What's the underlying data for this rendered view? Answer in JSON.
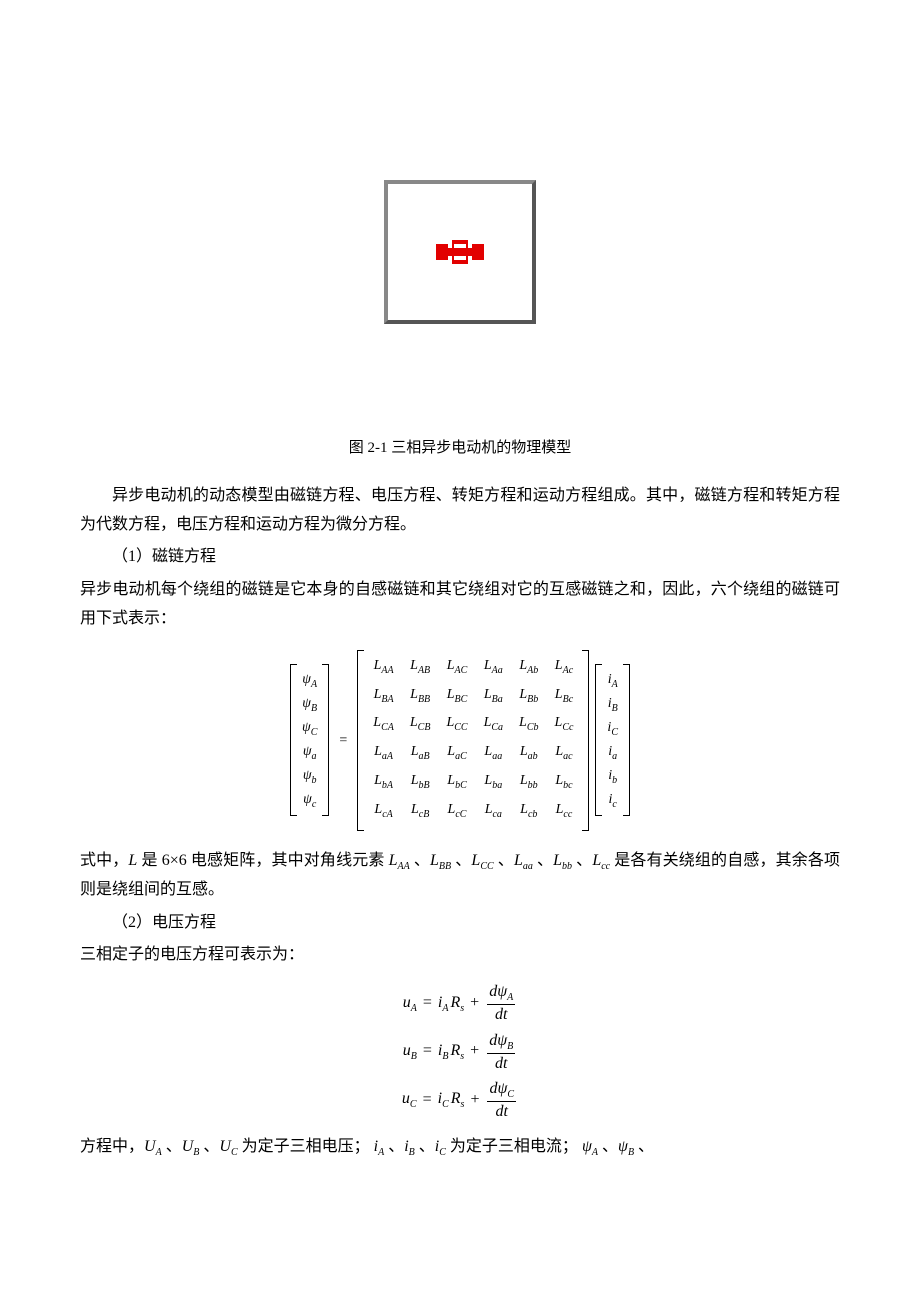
{
  "figure": {
    "caption": "图 2-1 三相异步电动机的物理模型"
  },
  "p1": "异步电动机的动态模型由磁链方程、电压方程、转矩方程和运动方程组成。其中，磁链方程和转矩方程为代数方程，电压方程和运动方程为微分方程。",
  "p2": "（1）磁链方程",
  "p3": "异步电动机每个绕组的磁链是它本身的自感磁链和其它绕组对它的互感磁链之和，因此，六个绕组的磁链可用下式表示：",
  "matrix": {
    "psi": [
      "ψ",
      "ψ",
      "ψ",
      "ψ",
      "ψ",
      "ψ"
    ],
    "psi_sub": [
      "A",
      "B",
      "C",
      "a",
      "b",
      "c"
    ],
    "L_rows": [
      "A",
      "B",
      "C",
      "a",
      "b",
      "c"
    ],
    "L_cols": [
      "A",
      "B",
      "C",
      "a",
      "b",
      "c"
    ],
    "i_sub": [
      "A",
      "B",
      "C",
      "a",
      "b",
      "c"
    ]
  },
  "p4_a": "式中，",
  "p4_L": "L",
  "p4_b": " 是 6×6 电感矩阵，其中对角线元素 ",
  "p4_c": " 是各有关绕组的自感，其余各项则是绕组间的互感。",
  "diag_subs": [
    "AA",
    "BB",
    "CC",
    "aa",
    "bb",
    "cc"
  ],
  "p5": "（2）电压方程",
  "p6": "三相定子的电压方程可表示为：",
  "voltage": {
    "rows": [
      {
        "u_sub": "A",
        "i_sub": "A",
        "psi_sub": "A"
      },
      {
        "u_sub": "B",
        "i_sub": "B",
        "psi_sub": "B"
      },
      {
        "u_sub": "C",
        "i_sub": "C",
        "psi_sub": "C"
      }
    ]
  },
  "p7_a": "方程中，",
  "p7_b": " 为定子三相电压；",
  "p7_c": " 为定子三相电流；",
  "U_subs": [
    "A",
    "B",
    "C"
  ],
  "i_subs": [
    "A",
    "B",
    "C"
  ],
  "psi_trailing": [
    "A",
    "B"
  ]
}
